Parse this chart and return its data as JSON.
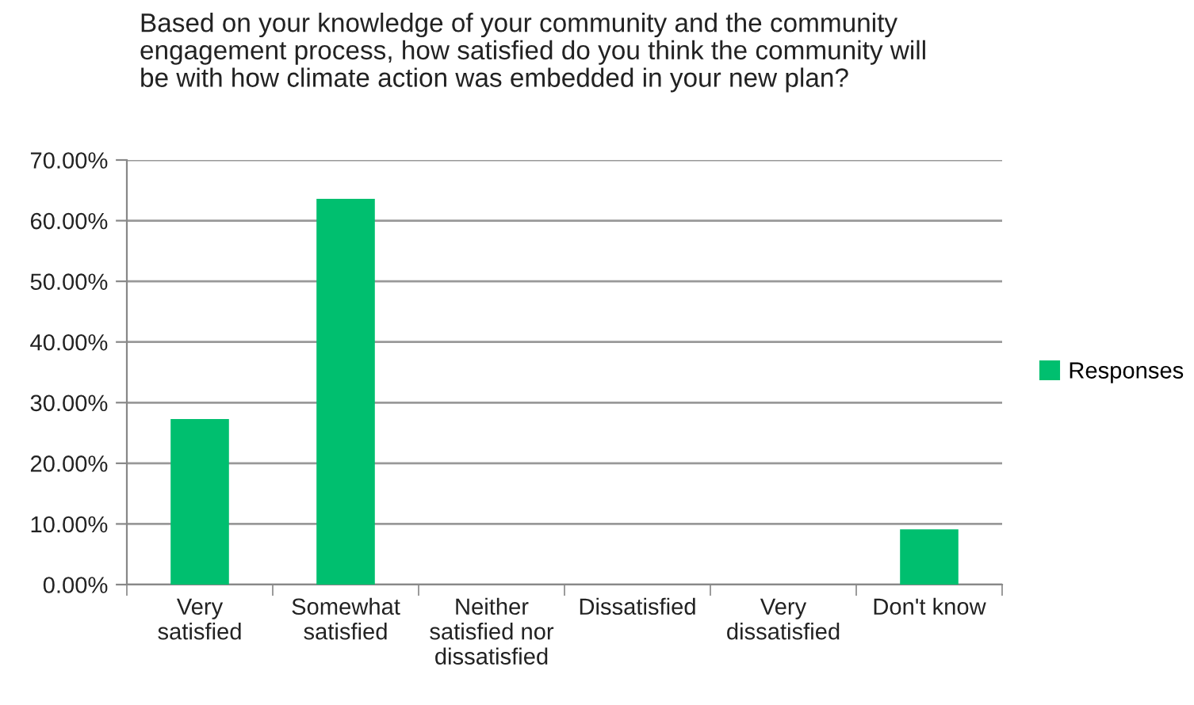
{
  "chart_data": {
    "type": "bar",
    "title": "Based on your knowledge of your community and the community\nengagement process, how satisfied do you think the community will\nbe with how climate action was embedded in your new plan?",
    "categories": [
      "Very\nsatisfied",
      "Somewhat\nsatisfied",
      "Neither\nsatisfied nor\ndissatisfied",
      "Dissatisfied",
      "Very\ndissatisfied",
      "Don't know"
    ],
    "series": [
      {
        "name": "Responses",
        "color": "#00bf6f",
        "values": [
          27.3,
          63.6,
          0,
          0,
          0,
          9.1
        ]
      }
    ],
    "ylim": [
      0,
      70
    ],
    "yticks": [
      {
        "value": 0,
        "label": "0.00%"
      },
      {
        "value": 10,
        "label": "10.00%"
      },
      {
        "value": 20,
        "label": "20.00%"
      },
      {
        "value": 30,
        "label": "30.00%"
      },
      {
        "value": 40,
        "label": "40.00%"
      },
      {
        "value": 50,
        "label": "50.00%"
      },
      {
        "value": 60,
        "label": "60.00%"
      },
      {
        "value": 70,
        "label": "70.00%"
      }
    ],
    "grid": "y",
    "legend": "right"
  }
}
